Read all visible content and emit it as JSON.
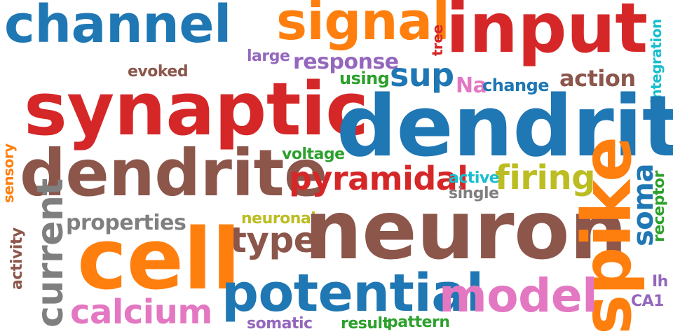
{
  "palette": {
    "blue": "#1f77b4",
    "red": "#d62728",
    "orange": "#ff7f0e",
    "brown": "#8c564b",
    "purple": "#9467bd",
    "green": "#2ca02c",
    "pink": "#e377c2",
    "gray": "#7f7f7f",
    "olive": "#bcbd22",
    "cyan": "#17becf"
  },
  "words": [
    {
      "id": "channel",
      "text": "channel"
    },
    {
      "id": "signal",
      "text": "signal"
    },
    {
      "id": "input",
      "text": "input"
    },
    {
      "id": "tree",
      "text": "tree"
    },
    {
      "id": "integration",
      "text": "integration"
    },
    {
      "id": "large",
      "text": "large"
    },
    {
      "id": "response",
      "text": "response"
    },
    {
      "id": "evoked",
      "text": "evoked"
    },
    {
      "id": "using",
      "text": "using"
    },
    {
      "id": "sup",
      "text": "sup"
    },
    {
      "id": "na",
      "text": "Na"
    },
    {
      "id": "change",
      "text": "change"
    },
    {
      "id": "action",
      "text": "action"
    },
    {
      "id": "synaptic",
      "text": "synaptic"
    },
    {
      "id": "dendritic",
      "text": "dendritic"
    },
    {
      "id": "sensory",
      "text": "sensory"
    },
    {
      "id": "voltage",
      "text": "voltage"
    },
    {
      "id": "dendrite",
      "text": "dendrite"
    },
    {
      "id": "pyramidal",
      "text": "pyramidal"
    },
    {
      "id": "active",
      "text": "active"
    },
    {
      "id": "single",
      "text": "single"
    },
    {
      "id": "firing",
      "text": "firing"
    },
    {
      "id": "receptor",
      "text": "receptor"
    },
    {
      "id": "soma",
      "text": "soma"
    },
    {
      "id": "neuronal",
      "text": "neuronal"
    },
    {
      "id": "properties",
      "text": "properties"
    },
    {
      "id": "type",
      "text": "type"
    },
    {
      "id": "neuron",
      "text": "neuron"
    },
    {
      "id": "current",
      "text": "current"
    },
    {
      "id": "activity",
      "text": "activity"
    },
    {
      "id": "cell",
      "text": "cell"
    },
    {
      "id": "spike",
      "text": "spike"
    },
    {
      "id": "potential",
      "text": "potential"
    },
    {
      "id": "model",
      "text": "model"
    },
    {
      "id": "ih",
      "text": "Ih"
    },
    {
      "id": "ca1",
      "text": "CA1"
    },
    {
      "id": "calcium",
      "text": "calcium"
    },
    {
      "id": "somatic",
      "text": "somatic"
    },
    {
      "id": "result",
      "text": "result"
    },
    {
      "id": "pattern",
      "text": "pattern"
    }
  ]
}
